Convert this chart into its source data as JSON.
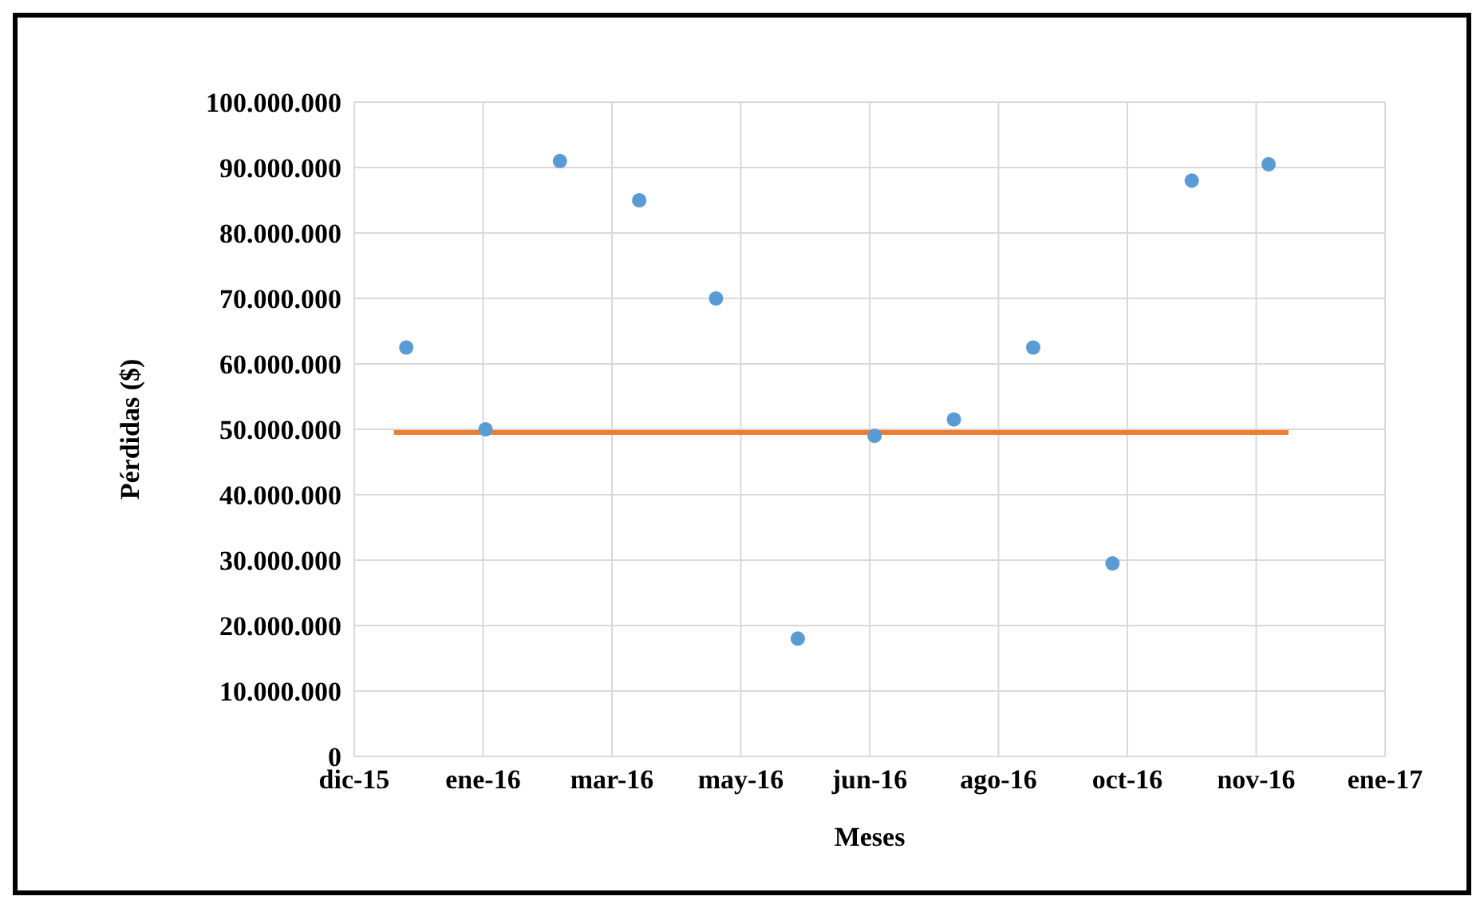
{
  "chart_data": {
    "type": "scatter",
    "xlabel": "Meses",
    "ylabel": "Pérdidas ($)",
    "x": [
      "2015-12-22",
      "2016-01-23",
      "2016-02-22",
      "2016-03-25",
      "2016-04-25",
      "2016-05-28",
      "2016-06-28",
      "2016-07-30",
      "2016-08-31",
      "2016-10-02",
      "2016-11-03",
      "2016-12-04"
    ],
    "series": [
      {
        "marker": "circle",
        "color": "#5b9bd5",
        "values": [
          62500000,
          50000000,
          91000000,
          85000000,
          70000000,
          18000000,
          49000000,
          51500000,
          62500000,
          29500000,
          88000000,
          90500000
        ]
      },
      {
        "type": "line",
        "color": "#ed7d31",
        "x": [
          "2015-12-17",
          "2016-12-12"
        ],
        "values": [
          49500000,
          49500000
        ]
      }
    ],
    "xlim": [
      "2015-12-01",
      "2017-01-20"
    ],
    "xticks": [
      {
        "value": "2015-12-01",
        "label": "dic-15"
      },
      {
        "value": "2016-01-22",
        "label": "ene-16"
      },
      {
        "value": "2016-03-14",
        "label": "mar-16"
      },
      {
        "value": "2016-05-05",
        "label": "may-16"
      },
      {
        "value": "2016-06-26",
        "label": "jun-16"
      },
      {
        "value": "2016-08-17",
        "label": "ago-16"
      },
      {
        "value": "2016-10-08",
        "label": "oct-16"
      },
      {
        "value": "2016-11-29",
        "label": "nov-16"
      },
      {
        "value": "2017-01-20",
        "label": "ene-17"
      }
    ],
    "ylim": [
      0,
      100000000
    ],
    "yticks": [
      0,
      {
        "value": 10000000,
        "label": "10.000.000"
      },
      {
        "value": 20000000,
        "label": "20.000.000"
      },
      {
        "value": 30000000,
        "label": "30.000.000"
      },
      {
        "value": 40000000,
        "label": "40.000.000"
      },
      {
        "value": 50000000,
        "label": "50.000.000"
      },
      {
        "value": 60000000,
        "label": "60.000.000"
      },
      {
        "value": 70000000,
        "label": "70.000.000"
      },
      {
        "value": 80000000,
        "label": "80.000.000"
      },
      {
        "value": 90000000,
        "label": "90.000.000"
      },
      {
        "value": 100000000,
        "label": "100.000.000"
      }
    ],
    "grid": true,
    "legend": false
  }
}
